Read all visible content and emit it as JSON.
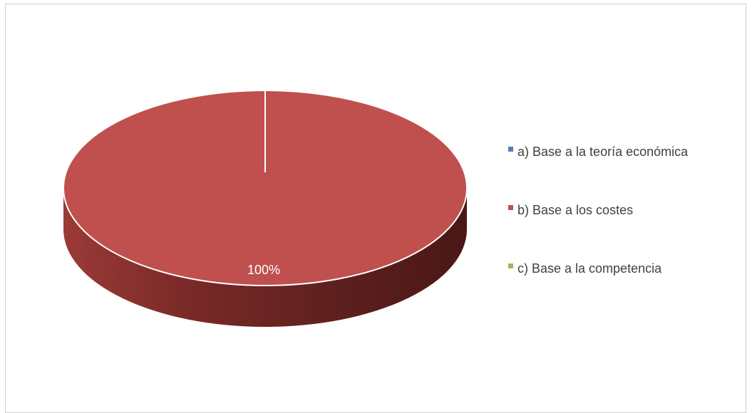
{
  "chart_data": {
    "type": "pie",
    "title": "",
    "style": "3d",
    "categories": [
      "a) Base a la teoría económica",
      "b) Base a los costes",
      "c) Base a la competencia"
    ],
    "values": [
      0,
      100,
      0
    ],
    "colors": [
      "#4f81bd",
      "#c0504d",
      "#9bbb59"
    ],
    "data_labels": [
      "",
      "100%",
      ""
    ],
    "legend_position": "right"
  }
}
